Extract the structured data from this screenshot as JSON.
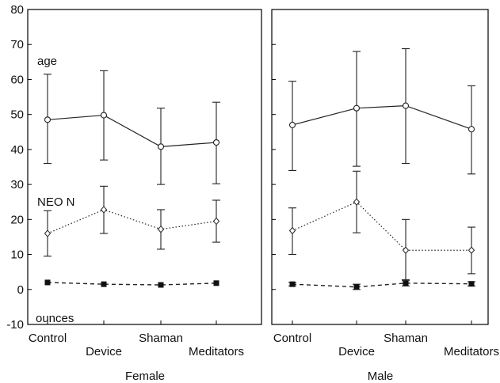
{
  "chart_data": [
    {
      "type": "line",
      "panel_label": "Female",
      "categories": [
        "Control",
        "Device",
        "Shaman",
        "Meditators"
      ],
      "ylim": [
        -10,
        80
      ],
      "yticks": [
        -10,
        0,
        10,
        20,
        30,
        40,
        50,
        60,
        70,
        80
      ],
      "grid": false,
      "series": [
        {
          "name": "age",
          "line_style": "solid",
          "marker": "open-circle",
          "values": [
            48.5,
            49.8,
            40.8,
            42.0
          ],
          "error_low": [
            36.0,
            37.0,
            30.0,
            30.2
          ],
          "error_high": [
            61.5,
            62.5,
            51.8,
            53.5
          ]
        },
        {
          "name": "NEO N",
          "line_style": "dotted",
          "marker": "open-diamond",
          "values": [
            16.0,
            22.8,
            17.2,
            19.5
          ],
          "error_low": [
            9.5,
            16.0,
            11.5,
            13.5
          ],
          "error_high": [
            22.5,
            29.5,
            22.8,
            25.5
          ]
        },
        {
          "name": "ounces",
          "line_style": "dashed",
          "marker": "filled-square",
          "values": [
            2.0,
            1.5,
            1.3,
            1.8
          ],
          "error_low": null,
          "error_high": null
        }
      ]
    },
    {
      "type": "line",
      "panel_label": "Male",
      "categories": [
        "Control",
        "Device",
        "Shaman",
        "Meditators"
      ],
      "ylim": [
        -10,
        80
      ],
      "grid": false,
      "series": [
        {
          "name": "age",
          "line_style": "solid",
          "marker": "open-circle",
          "values": [
            47.0,
            51.8,
            52.5,
            45.8
          ],
          "error_low": [
            34.0,
            35.2,
            36.0,
            33.0
          ],
          "error_high": [
            59.5,
            68.0,
            68.8,
            58.2
          ]
        },
        {
          "name": "NEO N",
          "line_style": "dotted",
          "marker": "open-diamond",
          "values": [
            16.8,
            25.0,
            11.2,
            11.2
          ],
          "error_low": [
            10.0,
            16.2,
            2.5,
            4.5
          ],
          "error_high": [
            23.3,
            33.8,
            20.0,
            17.8
          ]
        },
        {
          "name": "ounces",
          "line_style": "dashed",
          "marker": "filled-square",
          "values": [
            1.5,
            0.7,
            1.8,
            1.6
          ],
          "error_low": [
            1.0,
            0.0,
            1.0,
            1.0
          ],
          "error_high": [
            2.0,
            1.5,
            2.8,
            2.2
          ]
        }
      ]
    }
  ]
}
